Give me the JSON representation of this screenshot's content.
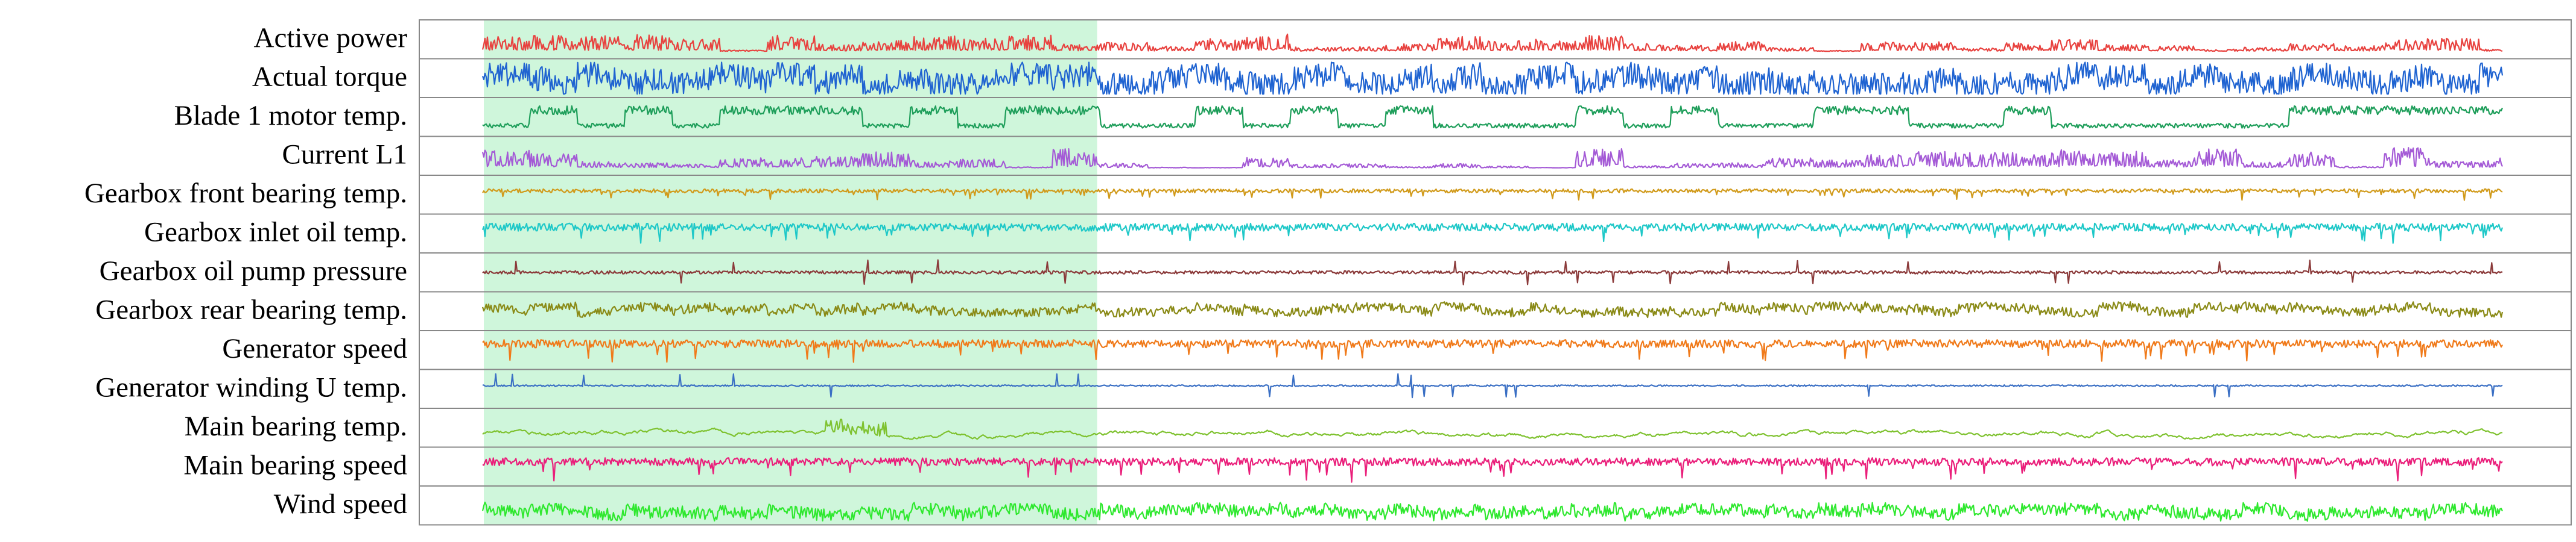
{
  "chart_data": {
    "type": "line",
    "title": "",
    "xlabel": "",
    "ylabel": "",
    "grid": false,
    "highlight_region": {
      "start": 0.03,
      "end": 0.315,
      "color": "#c7f5d5"
    },
    "series": [
      {
        "name": "Active power",
        "color": "#e8423f",
        "base": 0.4,
        "amp": 0.55,
        "noise": 0.35,
        "style": "spiky-up"
      },
      {
        "name": "Actual torque",
        "color": "#1f63d1",
        "base": 0.45,
        "amp": 0.5,
        "noise": 0.4,
        "style": "band"
      },
      {
        "name": "Blade 1 motor temp.",
        "color": "#1e9e5a",
        "base": 0.15,
        "amp": 0.7,
        "noise": 0.15,
        "style": "blocky"
      },
      {
        "name": "Current L1",
        "color": "#a45ad6",
        "base": 0.4,
        "amp": 0.55,
        "noise": 0.35,
        "style": "spiky-up"
      },
      {
        "name": "Gearbox front bearing temp.",
        "color": "#d19a1a",
        "base": 0.62,
        "amp": 0.25,
        "noise": 0.12,
        "style": "dips"
      },
      {
        "name": "Gearbox inlet oil temp.",
        "color": "#1ec8c8",
        "base": 0.7,
        "amp": 0.45,
        "noise": 0.25,
        "style": "dips"
      },
      {
        "name": "Gearbox oil pump pressure",
        "color": "#8b3a3a",
        "base": 0.5,
        "amp": 0.35,
        "noise": 0.1,
        "style": "sparse-spikes"
      },
      {
        "name": "Gearbox rear bearing temp.",
        "color": "#8a8a16",
        "base": 0.55,
        "amp": 0.25,
        "noise": 0.15,
        "style": "band"
      },
      {
        "name": "Generator speed",
        "color": "#f07a1a",
        "base": 0.7,
        "amp": 0.55,
        "noise": 0.25,
        "style": "dips"
      },
      {
        "name": "Generator winding U temp.",
        "color": "#3a6fc4",
        "base": 0.6,
        "amp": 0.35,
        "noise": 0.05,
        "style": "sparse-spikes"
      },
      {
        "name": "Main bearing temp.",
        "color": "#7fc230",
        "base": 0.3,
        "amp": 0.15,
        "noise": 0.06,
        "style": "smooth"
      },
      {
        "name": "Main bearing speed",
        "color": "#ea1e7a",
        "base": 0.65,
        "amp": 0.55,
        "noise": 0.25,
        "style": "dips"
      },
      {
        "name": "Wind speed",
        "color": "#2ee82e",
        "base": 0.3,
        "amp": 0.25,
        "noise": 0.2,
        "style": "band"
      }
    ]
  }
}
